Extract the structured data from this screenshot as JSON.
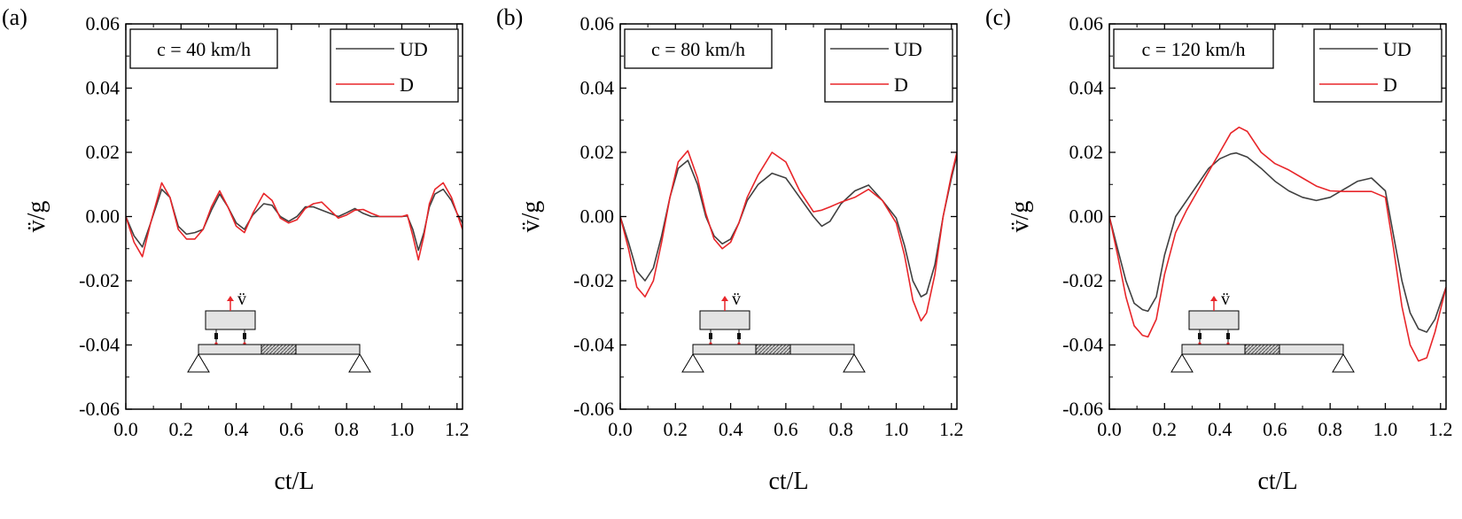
{
  "colors": {
    "UD": "#404040",
    "D": "#e8262a",
    "axis": "#000000",
    "inset_fill": "#e3e3e3",
    "inset_hatch": "#555555"
  },
  "chart_data": [
    {
      "type": "line",
      "panel_label": "(a)",
      "speed_label": "c = 40 km/h",
      "xlabel": "ct/L",
      "ylabel": "v̈/g",
      "inset_label": "v̈",
      "xlim": [
        0,
        1.22
      ],
      "ylim": [
        -0.06,
        0.06
      ],
      "xticks": [
        "0.0",
        "0.2",
        "0.4",
        "0.6",
        "0.8",
        "1.0",
        "1.2"
      ],
      "yticks": [
        "0.06",
        "0.04",
        "0.02",
        "0.00",
        "-0.02",
        "-0.04",
        "-0.06"
      ],
      "legend": [
        "UD",
        "D"
      ],
      "series": [
        {
          "name": "UD",
          "x": [
            0,
            0.03,
            0.06,
            0.09,
            0.13,
            0.16,
            0.19,
            0.22,
            0.25,
            0.28,
            0.31,
            0.34,
            0.37,
            0.4,
            0.43,
            0.46,
            0.5,
            0.53,
            0.56,
            0.59,
            0.62,
            0.65,
            0.68,
            0.71,
            0.74,
            0.77,
            0.8,
            0.83,
            0.86,
            0.89,
            0.92,
            0.95,
            0.98,
            1.0,
            1.02,
            1.04,
            1.06,
            1.08,
            1.1,
            1.12,
            1.15,
            1.18,
            1.2,
            1.22
          ],
          "y": [
            0,
            -0.006,
            -0.0095,
            -0.002,
            0.0085,
            0.006,
            -0.003,
            -0.0055,
            -0.005,
            -0.004,
            0.002,
            0.007,
            0.003,
            -0.002,
            -0.004,
            0.0005,
            0.004,
            0.0035,
            0.0,
            -0.0015,
            0.0,
            0.003,
            0.003,
            0.002,
            0.001,
            0.0,
            0.0012,
            0.0025,
            0.001,
            0.0,
            0.0,
            0.0,
            0.0,
            0.0,
            0.0002,
            -0.004,
            -0.0105,
            -0.005,
            0.003,
            0.007,
            0.0085,
            0.005,
            0.001,
            -0.002
          ]
        },
        {
          "name": "D",
          "x": [
            0,
            0.03,
            0.06,
            0.09,
            0.13,
            0.16,
            0.19,
            0.22,
            0.25,
            0.28,
            0.31,
            0.34,
            0.37,
            0.4,
            0.43,
            0.46,
            0.5,
            0.53,
            0.56,
            0.59,
            0.62,
            0.65,
            0.68,
            0.71,
            0.74,
            0.77,
            0.8,
            0.83,
            0.86,
            0.89,
            0.92,
            0.95,
            0.98,
            1.0,
            1.02,
            1.04,
            1.06,
            1.08,
            1.1,
            1.12,
            1.15,
            1.18,
            1.2,
            1.22
          ],
          "y": [
            0,
            -0.008,
            -0.0125,
            -0.002,
            0.0105,
            0.006,
            -0.004,
            -0.007,
            -0.007,
            -0.004,
            0.003,
            0.008,
            0.003,
            -0.003,
            -0.005,
            0.001,
            0.0072,
            0.005,
            -0.0005,
            -0.002,
            -0.001,
            0.0025,
            0.004,
            0.0045,
            0.002,
            -0.0005,
            0.0005,
            0.002,
            0.0022,
            0.001,
            0.0,
            0.0,
            0.0,
            0.0,
            0.0005,
            -0.006,
            -0.0135,
            -0.006,
            0.004,
            0.0085,
            0.0105,
            0.006,
            0.001,
            -0.004
          ]
        }
      ]
    },
    {
      "type": "line",
      "panel_label": "(b)",
      "speed_label": "c = 80 km/h",
      "xlabel": "ct/L",
      "ylabel": "v̈/g",
      "inset_label": "v̈",
      "xlim": [
        0,
        1.22
      ],
      "ylim": [
        -0.06,
        0.06
      ],
      "xticks": [
        "0.0",
        "0.2",
        "0.4",
        "0.6",
        "0.8",
        "1.0",
        "1.2"
      ],
      "yticks": [
        "0.06",
        "0.04",
        "0.02",
        "0.00",
        "-0.02",
        "-0.04",
        "-0.06"
      ],
      "legend": [
        "UD",
        "D"
      ],
      "series": [
        {
          "name": "UD",
          "x": [
            0,
            0.03,
            0.06,
            0.09,
            0.12,
            0.15,
            0.18,
            0.21,
            0.245,
            0.28,
            0.31,
            0.34,
            0.37,
            0.4,
            0.43,
            0.46,
            0.5,
            0.55,
            0.6,
            0.65,
            0.7,
            0.73,
            0.76,
            0.8,
            0.85,
            0.9,
            0.95,
            1.0,
            1.03,
            1.06,
            1.09,
            1.11,
            1.14,
            1.17,
            1.2,
            1.22
          ],
          "y": [
            0,
            -0.008,
            -0.017,
            -0.02,
            -0.016,
            -0.006,
            0.006,
            0.015,
            0.0175,
            0.01,
            0.0,
            -0.006,
            -0.0085,
            -0.007,
            -0.002,
            0.005,
            0.01,
            0.0135,
            0.012,
            0.006,
            0.0,
            -0.003,
            -0.0015,
            0.004,
            0.008,
            0.0098,
            0.005,
            -0.0005,
            -0.009,
            -0.02,
            -0.025,
            -0.024,
            -0.015,
            0.0,
            0.012,
            0.019
          ]
        },
        {
          "name": "D",
          "x": [
            0,
            0.03,
            0.06,
            0.09,
            0.12,
            0.15,
            0.18,
            0.21,
            0.245,
            0.28,
            0.31,
            0.34,
            0.37,
            0.4,
            0.43,
            0.46,
            0.5,
            0.55,
            0.6,
            0.65,
            0.7,
            0.73,
            0.76,
            0.8,
            0.85,
            0.9,
            0.95,
            1.0,
            1.03,
            1.06,
            1.09,
            1.11,
            1.14,
            1.17,
            1.2,
            1.22
          ],
          "y": [
            0,
            -0.01,
            -0.022,
            -0.025,
            -0.02,
            -0.008,
            0.006,
            0.017,
            0.0205,
            0.012,
            0.001,
            -0.007,
            -0.01,
            -0.008,
            -0.002,
            0.006,
            0.013,
            0.02,
            0.017,
            0.008,
            0.0015,
            0.002,
            0.003,
            0.0045,
            0.006,
            0.0085,
            0.005,
            -0.002,
            -0.012,
            -0.026,
            -0.0325,
            -0.03,
            -0.018,
            0.0,
            0.013,
            0.02
          ]
        }
      ]
    },
    {
      "type": "line",
      "panel_label": "(c)",
      "speed_label": "c = 120 km/h",
      "xlabel": "ct/L",
      "ylabel": "v̈/g",
      "inset_label": "v̈",
      "xlim": [
        0,
        1.22
      ],
      "ylim": [
        -0.06,
        0.06
      ],
      "xticks": [
        "0.0",
        "0.2",
        "0.4",
        "0.6",
        "0.8",
        "1.0",
        "1.2"
      ],
      "yticks": [
        "0.06",
        "0.04",
        "0.02",
        "0.00",
        "-0.02",
        "-0.04",
        "-0.06"
      ],
      "legend": [
        "UD",
        "D"
      ],
      "series": [
        {
          "name": "UD",
          "x": [
            0,
            0.03,
            0.06,
            0.09,
            0.12,
            0.14,
            0.17,
            0.2,
            0.24,
            0.28,
            0.32,
            0.36,
            0.4,
            0.44,
            0.46,
            0.5,
            0.55,
            0.6,
            0.65,
            0.7,
            0.75,
            0.8,
            0.85,
            0.9,
            0.95,
            1.0,
            1.03,
            1.06,
            1.09,
            1.12,
            1.15,
            1.18,
            1.22
          ],
          "y": [
            0,
            -0.01,
            -0.02,
            -0.027,
            -0.029,
            -0.0295,
            -0.025,
            -0.012,
            0.0,
            0.005,
            0.01,
            0.015,
            0.018,
            0.0195,
            0.0198,
            0.0185,
            0.015,
            0.011,
            0.008,
            0.006,
            0.005,
            0.006,
            0.0085,
            0.011,
            0.012,
            0.008,
            -0.006,
            -0.02,
            -0.03,
            -0.035,
            -0.036,
            -0.032,
            -0.022
          ]
        },
        {
          "name": "D",
          "x": [
            0,
            0.03,
            0.06,
            0.09,
            0.12,
            0.14,
            0.17,
            0.2,
            0.24,
            0.28,
            0.32,
            0.36,
            0.4,
            0.44,
            0.47,
            0.5,
            0.55,
            0.6,
            0.65,
            0.7,
            0.75,
            0.8,
            0.85,
            0.9,
            0.95,
            1.0,
            1.03,
            1.06,
            1.09,
            1.12,
            1.15,
            1.18,
            1.22
          ],
          "y": [
            0,
            -0.012,
            -0.025,
            -0.034,
            -0.037,
            -0.0375,
            -0.032,
            -0.018,
            -0.005,
            0.002,
            0.008,
            0.014,
            0.02,
            0.026,
            0.0278,
            0.0265,
            0.02,
            0.0165,
            0.0145,
            0.012,
            0.0095,
            0.008,
            0.0078,
            0.0078,
            0.0078,
            0.006,
            -0.01,
            -0.028,
            -0.04,
            -0.045,
            -0.044,
            -0.036,
            -0.022
          ]
        }
      ]
    }
  ]
}
